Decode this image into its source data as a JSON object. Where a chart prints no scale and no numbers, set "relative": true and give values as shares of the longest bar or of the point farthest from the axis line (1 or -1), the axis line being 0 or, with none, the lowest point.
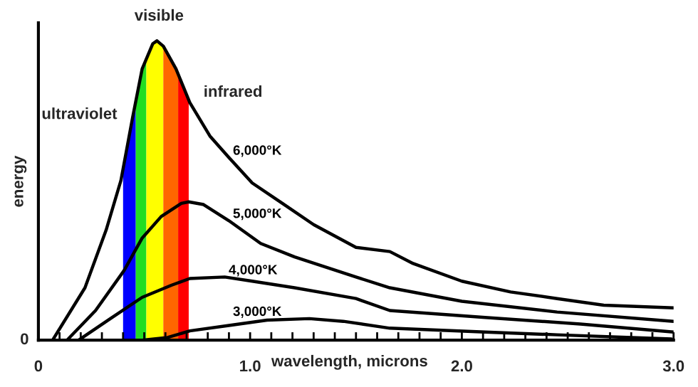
{
  "chart_data": {
    "type": "line",
    "xlabel": "wavelength, microns",
    "ylabel": "energy",
    "relative": true,
    "xlim": [
      0,
      3.0
    ],
    "xticks": [
      0,
      {
        "value": 0.1,
        "label": null
      },
      {
        "value": 0.2,
        "label": null
      },
      {
        "value": 0.3,
        "label": null
      },
      {
        "value": 0.4,
        "label": null
      },
      {
        "value": 0.5,
        "label": null
      },
      {
        "value": 0.6,
        "label": null
      },
      {
        "value": 0.7,
        "label": null
      },
      {
        "value": 0.8,
        "label": null
      },
      {
        "value": 0.9,
        "label": null
      },
      {
        "value": 1.0,
        "label": "1.0"
      },
      {
        "value": 1.1,
        "label": null
      },
      {
        "value": 1.2,
        "label": null
      },
      {
        "value": 1.3,
        "label": null
      },
      {
        "value": 1.4,
        "label": null
      },
      {
        "value": 1.5,
        "label": null
      },
      {
        "value": 1.6,
        "label": null
      },
      {
        "value": 1.7,
        "label": null
      },
      {
        "value": 1.8,
        "label": null
      },
      {
        "value": 1.9,
        "label": null
      },
      {
        "value": 2.0,
        "label": "2.0"
      },
      {
        "value": 2.1,
        "label": null
      },
      {
        "value": 2.2,
        "label": null
      },
      {
        "value": 2.3,
        "label": null
      },
      {
        "value": 2.4,
        "label": null
      },
      {
        "value": 2.5,
        "label": null
      },
      {
        "value": 2.6,
        "label": null
      },
      {
        "value": 2.7,
        "label": null
      },
      {
        "value": 2.8,
        "label": null
      },
      {
        "value": 2.9,
        "label": null
      },
      {
        "value": 3.0,
        "label": "3.0"
      }
    ],
    "series": [
      {
        "name": "6,000°K",
        "color": "#000000",
        "x": [
          0.067,
          0.22,
          0.32,
          0.39,
          0.445,
          0.49,
          0.54,
          0.56,
          0.59,
          0.65,
          0.715,
          0.81,
          0.9,
          1.01,
          1.15,
          1.3,
          1.5,
          1.66,
          1.77,
          2.0,
          2.23,
          2.45,
          2.67,
          3.0
        ],
        "values": [
          0,
          0.175,
          0.368,
          0.534,
          0.744,
          0.906,
          0.99,
          1.0,
          0.982,
          0.906,
          0.794,
          0.682,
          0.61,
          0.525,
          0.458,
          0.386,
          0.31,
          0.296,
          0.256,
          0.197,
          0.161,
          0.139,
          0.117,
          0.108
        ]
      },
      {
        "name": "5,000°K",
        "color": "#000000",
        "x": [
          0.135,
          0.27,
          0.405,
          0.49,
          0.58,
          0.675,
          0.71,
          0.78,
          0.9,
          1.05,
          1.21,
          1.5,
          1.66,
          2.0,
          2.45,
          3.0
        ],
        "values": [
          0,
          0.099,
          0.233,
          0.341,
          0.413,
          0.457,
          0.462,
          0.453,
          0.399,
          0.323,
          0.278,
          0.211,
          0.175,
          0.13,
          0.094,
          0.063
        ]
      },
      {
        "name": "4,000°K",
        "color": "#000000",
        "x": [
          0.19,
          0.34,
          0.49,
          0.63,
          0.715,
          0.88,
          1.01,
          1.21,
          1.5,
          1.66,
          2.11,
          2.56,
          3.0
        ],
        "values": [
          0,
          0.072,
          0.143,
          0.184,
          0.206,
          0.211,
          0.197,
          0.175,
          0.139,
          0.099,
          0.076,
          0.054,
          0.027
        ]
      },
      {
        "name": "3,000°K",
        "color": "#000000",
        "x": [
          0.49,
          0.61,
          0.715,
          0.9,
          1.08,
          1.28,
          1.44,
          1.66,
          2.11,
          2.45,
          2.99
        ],
        "values": [
          0,
          0.009,
          0.031,
          0.049,
          0.067,
          0.072,
          0.063,
          0.04,
          0.027,
          0.018,
          0.004
        ]
      }
    ],
    "bands": [
      {
        "axis": "x",
        "from": 0.4,
        "to": 0.46,
        "color": "#0000ff"
      },
      {
        "axis": "x",
        "from": 0.46,
        "to": 0.51,
        "color": "#22dd22"
      },
      {
        "axis": "x",
        "from": 0.51,
        "to": 0.59,
        "color": "#ffff00"
      },
      {
        "axis": "x",
        "from": 0.59,
        "to": 0.66,
        "color": "#ff6600"
      },
      {
        "axis": "x",
        "from": 0.66,
        "to": 0.71,
        "color": "#ff0000"
      }
    ],
    "annotations": [
      "visible",
      "ultraviolet",
      "infrared",
      "0"
    ],
    "marker": "none",
    "line_style": "solid",
    "grid": false,
    "legend": false
  }
}
